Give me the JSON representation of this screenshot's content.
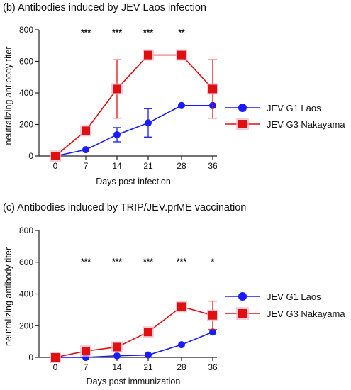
{
  "chart_data": [
    {
      "type": "line",
      "title": "(b) Antibodies induced by JEV Laos infection",
      "xlabel": "Days post infection",
      "ylabel": "neutralizing antibody titer",
      "x": [
        0,
        7,
        14,
        21,
        28,
        36
      ],
      "x_ticks": [
        "0",
        "7",
        "14",
        "21",
        "28",
        "36"
      ],
      "y_ticks": [
        "0",
        "200",
        "400",
        "600",
        "800"
      ],
      "ylim": [
        0,
        800
      ],
      "significance": [
        "",
        "***",
        "***",
        "***",
        "**",
        ""
      ],
      "legend_position": "right",
      "grid": false,
      "series": [
        {
          "name": "JEV G1 Laos",
          "color": "#1a1aff",
          "marker": "circle",
          "values": [
            0,
            40,
            135,
            210,
            320,
            320
          ],
          "error": [
            0,
            0,
            45,
            90,
            0,
            0
          ]
        },
        {
          "name": "JEV G3 Nakayama",
          "color": "#e01010",
          "marker": "square",
          "values": [
            0,
            160,
            425,
            640,
            640,
            425
          ],
          "error": [
            0,
            0,
            185,
            0,
            0,
            185
          ]
        }
      ]
    },
    {
      "type": "line",
      "title": "(c) Antibodies induced by TRIP/JEV.prME vaccination",
      "xlabel": "Days post immunization",
      "ylabel": "neutralizing antibody titer",
      "x": [
        0,
        7,
        14,
        21,
        28,
        36
      ],
      "x_ticks": [
        "0",
        "7",
        "14",
        "21",
        "28",
        "36"
      ],
      "y_ticks": [
        "0",
        "200",
        "400",
        "600",
        "800"
      ],
      "ylim": [
        0,
        800
      ],
      "significance": [
        "",
        "***",
        "***",
        "***",
        "***",
        "*"
      ],
      "legend_position": "right",
      "grid": false,
      "series": [
        {
          "name": "JEV G1 Laos",
          "color": "#1a1aff",
          "marker": "circle",
          "values": [
            0,
            0,
            10,
            15,
            80,
            160
          ],
          "error": [
            0,
            0,
            0,
            0,
            0,
            0
          ]
        },
        {
          "name": "JEV G3 Nakayama",
          "color": "#e01010",
          "marker": "square",
          "values": [
            0,
            40,
            65,
            160,
            320,
            265
          ],
          "error": [
            0,
            0,
            0,
            0,
            0,
            90
          ]
        }
      ]
    }
  ]
}
